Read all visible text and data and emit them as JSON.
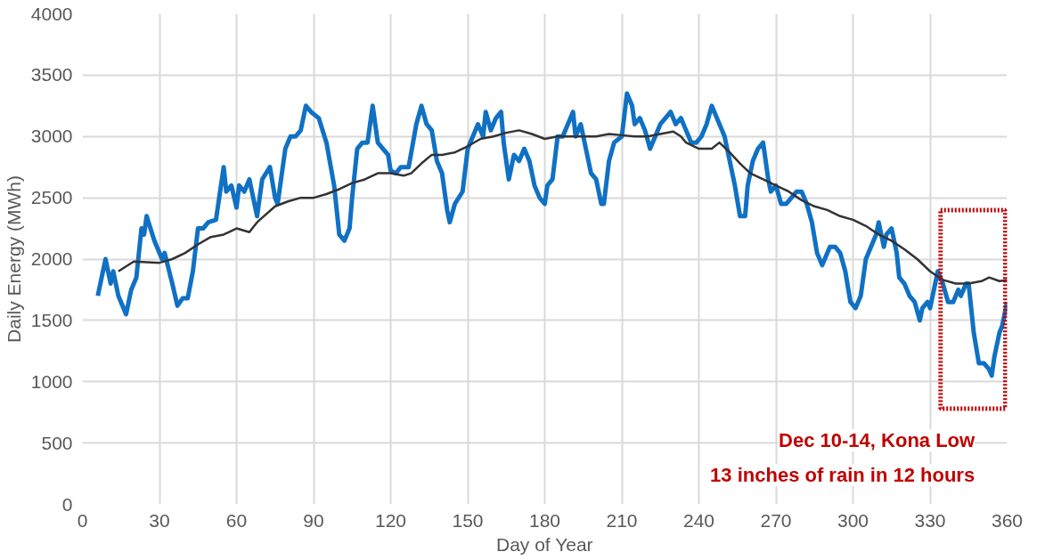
{
  "chart_data": {
    "type": "line",
    "xlabel": "Day of Year",
    "ylabel": "Daily Energy (MWh)",
    "xlim": [
      0,
      360
    ],
    "xticks": [
      0,
      30,
      60,
      90,
      120,
      150,
      180,
      210,
      240,
      270,
      300,
      330,
      360
    ],
    "ylim": [
      0,
      4000
    ],
    "yticks": [
      0,
      500,
      1000,
      1500,
      2000,
      2500,
      3000,
      3500,
      4000
    ],
    "grid": true,
    "marker": "none",
    "line_style": "solid",
    "series": [
      {
        "color": "#1071c4",
        "x": [
          6,
          9,
          11,
          12,
          14,
          17,
          19,
          21,
          23,
          24,
          25,
          28,
          31,
          32,
          35,
          37,
          39,
          41,
          43,
          45,
          47,
          49,
          52,
          55,
          56,
          58,
          60,
          61,
          63,
          65,
          67,
          68,
          70,
          73,
          75,
          76,
          79,
          81,
          83,
          85,
          87,
          89,
          92,
          95,
          98,
          100,
          102,
          104,
          105,
          107,
          109,
          111,
          113,
          115,
          117,
          119,
          120,
          122,
          124,
          127,
          130,
          132,
          134,
          136,
          138,
          140,
          142,
          143,
          145,
          148,
          150,
          152,
          154,
          156,
          157,
          159,
          161,
          163,
          164,
          166,
          168,
          170,
          172,
          174,
          176,
          178,
          180,
          181,
          183,
          185,
          187,
          189,
          191,
          192,
          194,
          196,
          198,
          200,
          202,
          203,
          205,
          207,
          210,
          212,
          214,
          215,
          217,
          219,
          221,
          223,
          225,
          227,
          229,
          231,
          233,
          235,
          237,
          239,
          241,
          243,
          245,
          247,
          249,
          250,
          252,
          254,
          256,
          258,
          259,
          261,
          263,
          265,
          267,
          268,
          270,
          272,
          274,
          276,
          278,
          280,
          282,
          284,
          286,
          288,
          289,
          291,
          293,
          295,
          297,
          299,
          301,
          303,
          305,
          307,
          309,
          310,
          312,
          313,
          315,
          317,
          318,
          320,
          322,
          324,
          326,
          327,
          329,
          330,
          332,
          333,
          335,
          337,
          339,
          341,
          342,
          344,
          345,
          347,
          349,
          351,
          353,
          354,
          355,
          357,
          358,
          359,
          360
        ],
        "values": [
          1700,
          2000,
          1800,
          1900,
          1700,
          1550,
          1750,
          1850,
          2250,
          2200,
          2350,
          2150,
          2000,
          2050,
          1800,
          1620,
          1680,
          1680,
          1900,
          2250,
          2250,
          2300,
          2320,
          2750,
          2550,
          2600,
          2420,
          2600,
          2550,
          2650,
          2450,
          2350,
          2650,
          2750,
          2500,
          2450,
          2900,
          3000,
          3000,
          3050,
          3250,
          3200,
          3150,
          2950,
          2600,
          2200,
          2150,
          2250,
          2500,
          2900,
          2950,
          2950,
          3250,
          2950,
          2900,
          2850,
          2720,
          2700,
          2750,
          2750,
          3100,
          3250,
          3100,
          3050,
          2800,
          2700,
          2400,
          2300,
          2450,
          2550,
          2900,
          3000,
          3100,
          3000,
          3200,
          3050,
          3150,
          3200,
          2950,
          2650,
          2850,
          2800,
          2900,
          2800,
          2600,
          2500,
          2450,
          2600,
          2650,
          3000,
          3000,
          3100,
          3200,
          3000,
          3100,
          2900,
          2700,
          2650,
          2450,
          2450,
          2800,
          2950,
          3000,
          3350,
          3250,
          3100,
          3150,
          3050,
          2900,
          3000,
          3100,
          3150,
          3200,
          3100,
          3150,
          3050,
          2950,
          2950,
          3000,
          3100,
          3250,
          3150,
          3050,
          3000,
          2800,
          2600,
          2350,
          2350,
          2600,
          2800,
          2900,
          2950,
          2650,
          2550,
          2600,
          2450,
          2450,
          2500,
          2550,
          2550,
          2450,
          2300,
          2050,
          1950,
          2000,
          2100,
          2100,
          2050,
          1900,
          1650,
          1600,
          1700,
          2000,
          2100,
          2200,
          2300,
          2100,
          2200,
          2250,
          2050,
          1850,
          1800,
          1700,
          1650,
          1500,
          1600,
          1650,
          1600,
          1800,
          1900,
          1800,
          1650,
          1650,
          1750,
          1700,
          1800,
          1800,
          1400,
          1150,
          1150,
          1100,
          1050,
          1200,
          1400,
          1450,
          1550,
          1650
        ]
      },
      {
        "color": "#333333",
        "x": [
          14,
          20,
          30,
          35,
          40,
          45,
          50,
          55,
          60,
          65,
          68,
          75,
          80,
          85,
          90,
          95,
          100,
          105,
          110,
          115,
          120,
          125,
          128,
          132,
          136,
          140,
          145,
          150,
          155,
          160,
          165,
          170,
          175,
          180,
          185,
          190,
          195,
          200,
          205,
          210,
          215,
          220,
          225,
          230,
          233,
          235,
          240,
          245,
          248,
          252,
          256,
          260,
          265,
          270,
          275,
          280,
          285,
          290,
          295,
          300,
          305,
          310,
          315,
          320,
          325,
          330,
          335,
          340,
          345,
          350,
          353,
          357,
          360
        ],
        "values": [
          1900,
          1980,
          1970,
          2000,
          2050,
          2120,
          2180,
          2200,
          2250,
          2220,
          2300,
          2430,
          2470,
          2500,
          2500,
          2530,
          2570,
          2620,
          2650,
          2700,
          2700,
          2680,
          2700,
          2780,
          2850,
          2850,
          2870,
          2920,
          2980,
          3000,
          3030,
          3050,
          3020,
          2980,
          3000,
          3000,
          3000,
          3000,
          3020,
          3010,
          3000,
          3000,
          3020,
          3040,
          3000,
          2950,
          2900,
          2900,
          2950,
          2870,
          2780,
          2700,
          2650,
          2600,
          2550,
          2480,
          2430,
          2400,
          2350,
          2320,
          2270,
          2200,
          2150,
          2080,
          2000,
          1900,
          1830,
          1800,
          1800,
          1820,
          1850,
          1820,
          1830
        ]
      }
    ],
    "annotations": [
      "Dec 10-14, Kona Low",
      "13 inches of rain in 12 hours"
    ]
  }
}
